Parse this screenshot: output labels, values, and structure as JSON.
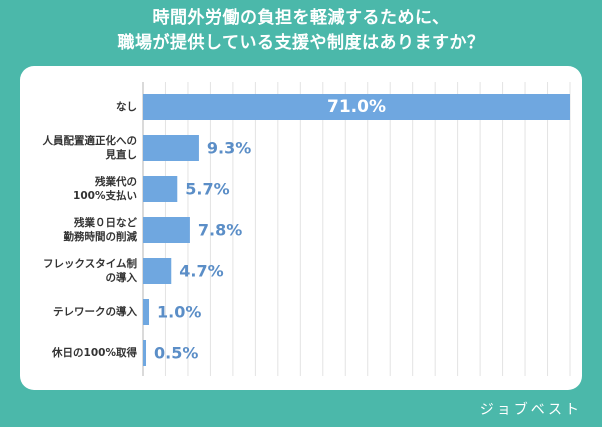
{
  "title_lines": [
    "時間外労働の負担を軽減するために、",
    "職場が提供している支援や制度はありますか？"
  ],
  "brand": "ジョブベスト",
  "colors": {
    "background": "#4bb8aa",
    "bar": "#6fa7e0",
    "value_text": "#5b8ec7",
    "label_text": "#333333",
    "grid": "#e3e3e3"
  },
  "chart_data": {
    "type": "bar",
    "orientation": "horizontal",
    "categories": [
      [
        "なし"
      ],
      [
        "人員配置適正化への",
        "見直し"
      ],
      [
        "残業代の",
        "100%支払い"
      ],
      [
        "残業０日など",
        "勤務時間の削減"
      ],
      [
        "フレックスタイム制",
        "の導入"
      ],
      [
        "テレワークの導入"
      ],
      [
        "休日の100%取得"
      ]
    ],
    "values": [
      71.0,
      9.3,
      5.7,
      7.8,
      4.7,
      1.0,
      0.5
    ],
    "value_labels": [
      "71.0%",
      "9.3%",
      "5.7%",
      "7.8%",
      "4.7%",
      "1.0%",
      "0.5%"
    ],
    "xlim": [
      0,
      71
    ],
    "grid": true
  }
}
